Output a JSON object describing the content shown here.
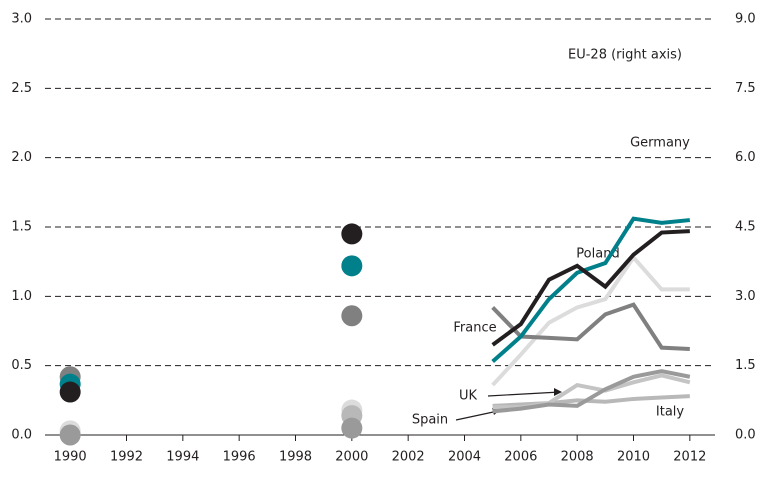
{
  "chart_data": {
    "type": "line",
    "x": [
      1990,
      1991,
      1992,
      1993,
      1994,
      1995,
      1996,
      1997,
      1998,
      1999,
      2000,
      2001,
      2002,
      2003,
      2004,
      2005,
      2006,
      2007,
      2008,
      2009,
      2010,
      2011,
      2012
    ],
    "xlim": [
      1989,
      2013
    ],
    "xticks": [
      1990,
      1992,
      1994,
      1996,
      1998,
      2000,
      2002,
      2004,
      2006,
      2008,
      2010,
      2012
    ],
    "ylim": [
      0,
      3
    ],
    "yticks": [
      {
        "value": 0,
        "label": "0.0"
      },
      0.5,
      {
        "value": 1,
        "label": "1.0"
      },
      1.5,
      {
        "value": 2,
        "label": "2.0"
      },
      2.5,
      {
        "value": 3,
        "label": "3.0"
      }
    ],
    "y2lim": [
      0,
      9
    ],
    "y2ticks": [
      {
        "value": 0,
        "label": "0.0"
      },
      1.5,
      {
        "value": 3,
        "label": "3.0"
      },
      4.5,
      {
        "value": 6,
        "label": "6.0"
      },
      7.5,
      {
        "value": 9,
        "label": "9.0"
      }
    ],
    "grid": true,
    "series": [
      {
        "name": "Poland",
        "color": "#dcdcdc",
        "values": [
          0.03,
          null,
          null,
          null,
          null,
          null,
          null,
          null,
          null,
          null,
          0.18,
          null,
          null,
          null,
          null,
          0.36,
          0.58,
          0.81,
          0.92,
          0.98,
          1.28,
          1.05,
          1.05
        ]
      },
      {
        "name": "Italy",
        "color": "#b8b8b8",
        "values": [
          null,
          null,
          null,
          null,
          null,
          null,
          null,
          null,
          null,
          null,
          0.14,
          null,
          null,
          null,
          null,
          0.21,
          0.22,
          0.23,
          0.25,
          0.24,
          0.26,
          0.27,
          0.28
        ]
      },
      {
        "name": "UK",
        "color": "#c4c4c4",
        "values": [
          null,
          null,
          null,
          null,
          null,
          null,
          null,
          null,
          null,
          null,
          null,
          null,
          null,
          null,
          null,
          0.2,
          0.2,
          0.23,
          0.36,
          0.32,
          0.38,
          0.43,
          0.38
        ]
      },
      {
        "name": "Spain",
        "color": "#9a9a9a",
        "values": [
          0.0,
          null,
          null,
          null,
          null,
          null,
          null,
          null,
          null,
          null,
          0.05,
          null,
          null,
          null,
          null,
          0.17,
          0.19,
          0.22,
          0.21,
          0.33,
          0.42,
          0.46,
          0.42
        ]
      },
      {
        "name": "France",
        "color": "#808080",
        "values": [
          0.42,
          null,
          null,
          null,
          null,
          null,
          null,
          null,
          null,
          null,
          0.86,
          null,
          null,
          null,
          null,
          0.92,
          0.71,
          0.7,
          0.69,
          0.87,
          0.94,
          0.63,
          0.62
        ]
      },
      {
        "name": "EU-28 (right axis)",
        "color": "#00808a",
        "axis": "y2",
        "values": [
          1.1,
          null,
          null,
          null,
          null,
          null,
          null,
          null,
          null,
          null,
          3.66,
          null,
          null,
          null,
          null,
          1.59,
          2.13,
          2.94,
          3.51,
          3.72,
          4.68,
          4.59,
          4.65
        ]
      },
      {
        "name": "Germany",
        "color": "#231f20",
        "values": [
          0.31,
          null,
          null,
          null,
          null,
          null,
          null,
          null,
          null,
          null,
          1.45,
          null,
          null,
          null,
          null,
          0.65,
          0.8,
          1.12,
          1.22,
          1.07,
          1.3,
          1.46,
          1.47
        ]
      }
    ]
  }
}
